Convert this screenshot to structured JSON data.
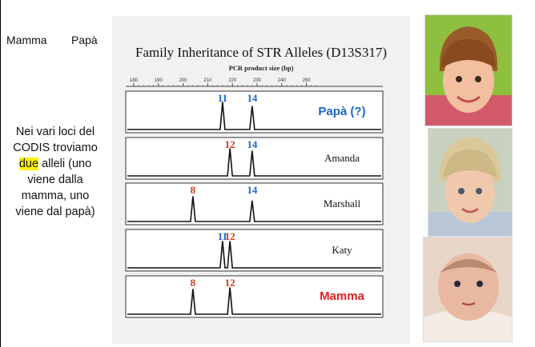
{
  "top_labels": {
    "mother": "Mamma",
    "father": "Papà"
  },
  "side_text": {
    "before": "Nei vari loci del CODIS troviamo ",
    "highlight": "due",
    "after": " alleli (uno viene dalla mamma, uno viene dal papà)"
  },
  "chart_data": {
    "type": "line",
    "title": "Family Inheritance of STR Alleles (D13S317)",
    "xlabel": "PCR product size (bp)",
    "xticks": [
      180,
      190,
      200,
      210,
      220,
      230,
      240,
      250
    ],
    "xlim": [
      180,
      255
    ],
    "lanes": [
      {
        "name": "Papà (?)",
        "name_color": "#1a66c9",
        "peaks": [
          {
            "allele": "11",
            "size_bp": 216,
            "height": 0.82,
            "color": "#1a66c9"
          },
          {
            "allele": "14",
            "size_bp": 228,
            "height": 0.7,
            "color": "#1a66c9"
          }
        ]
      },
      {
        "name": "Amanda",
        "name_color": "#111111",
        "peaks": [
          {
            "allele": "12",
            "size_bp": 219,
            "height": 0.82,
            "color": "#d9361f"
          },
          {
            "allele": "14",
            "size_bp": 228,
            "height": 0.75,
            "color": "#1a66c9"
          }
        ]
      },
      {
        "name": "Marshall",
        "name_color": "#111111",
        "peaks": [
          {
            "allele": "8",
            "size_bp": 204,
            "height": 0.75,
            "color": "#d9361f"
          },
          {
            "allele": "14",
            "size_bp": 228,
            "height": 0.62,
            "color": "#1a66c9"
          }
        ]
      },
      {
        "name": "Katy",
        "name_color": "#111111",
        "peaks": [
          {
            "allele": "11",
            "size_bp": 216,
            "height": 0.8,
            "color": "#1a66c9"
          },
          {
            "allele": "12",
            "size_bp": 219,
            "height": 0.8,
            "color": "#d9361f"
          }
        ]
      },
      {
        "name": "Mamma",
        "name_color": "#e02020",
        "peaks": [
          {
            "allele": "8",
            "size_bp": 204,
            "height": 0.75,
            "color": "#d9361f"
          },
          {
            "allele": "12",
            "size_bp": 219,
            "height": 0.8,
            "color": "#d9361f"
          }
        ]
      }
    ]
  }
}
